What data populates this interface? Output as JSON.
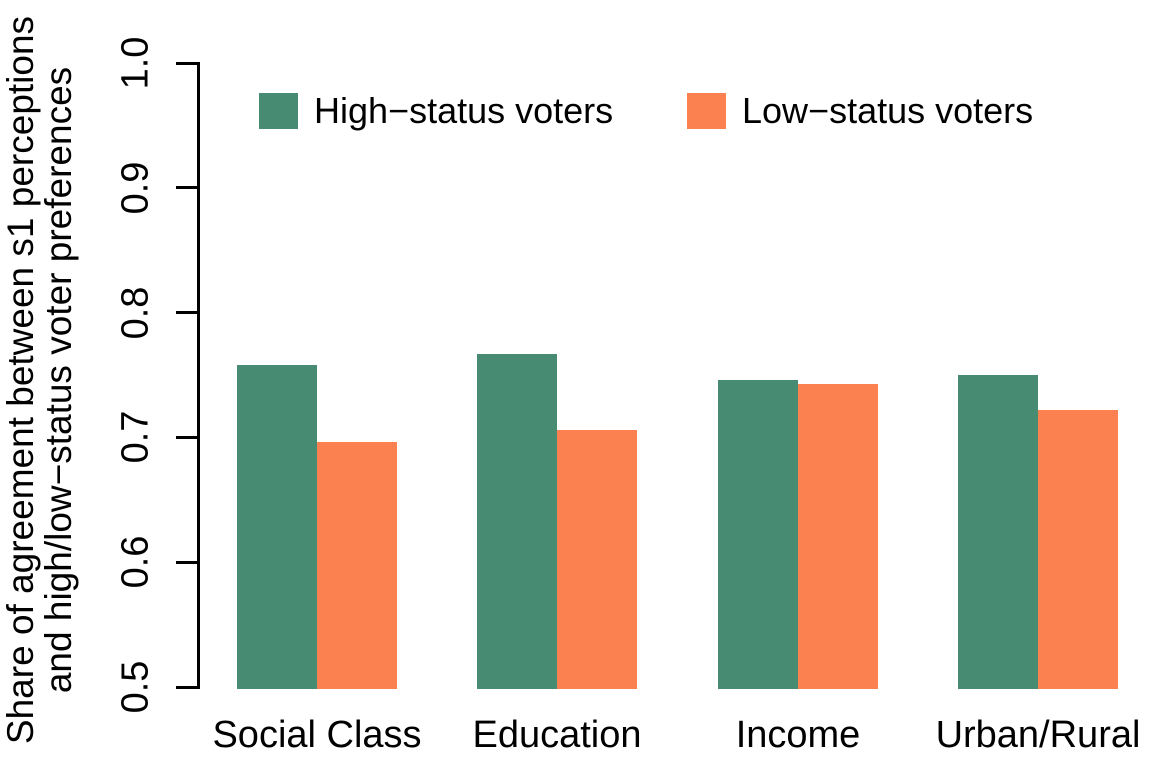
{
  "chart_data": {
    "type": "bar",
    "title": "",
    "categories": [
      "Social Class",
      "Education",
      "Income",
      "Urban/Rural"
    ],
    "series": [
      {
        "name": "High−status voters",
        "color": "#478C72",
        "values": [
          0.758,
          0.767,
          0.746,
          0.75
        ]
      },
      {
        "name": "Low−status voters",
        "color": "#FC8150",
        "values": [
          0.696,
          0.706,
          0.743,
          0.722
        ]
      }
    ],
    "ylabel_line1": "Share of agreement between s1 perceptions",
    "ylabel_line2": "and high/low−status voter preferences",
    "xlabel": "",
    "ylim": [
      0.5,
      1.0
    ],
    "yticks": [
      "0.5",
      "0.6",
      "0.7",
      "0.8",
      "0.9",
      "1.0"
    ],
    "grid": false,
    "legend_position": "top-left-inside",
    "background": "#FFFFFF",
    "axis_color": "#000000"
  }
}
